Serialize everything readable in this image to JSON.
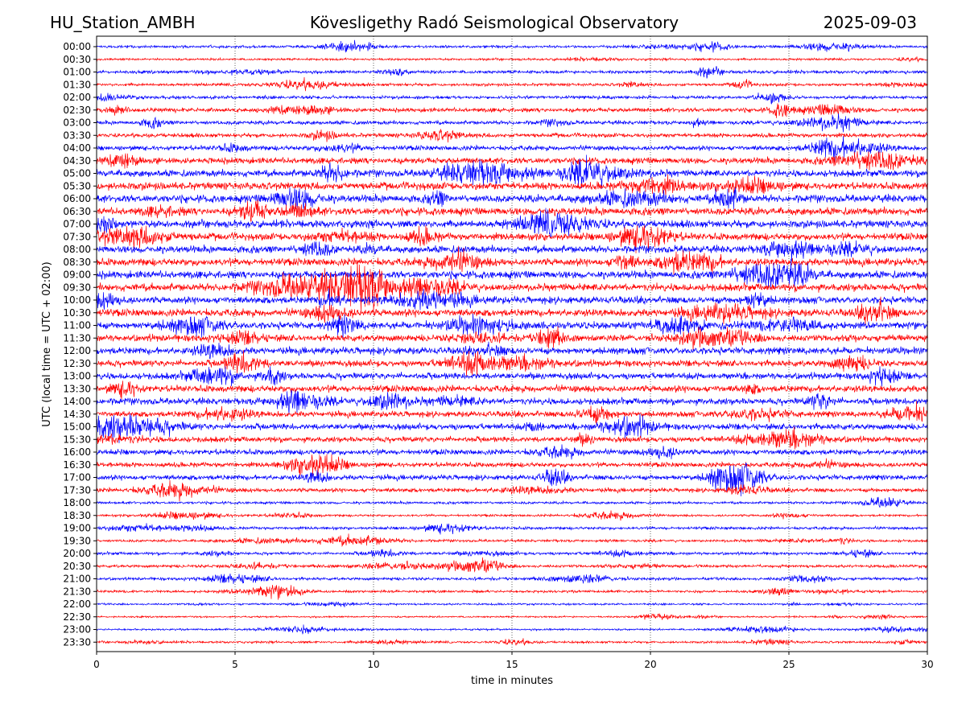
{
  "header": {
    "station": "HU_Station_AMBH",
    "observatory": "Kövesligethy Radó Seismological Observatory",
    "date": "2025-09-03"
  },
  "chart_data": {
    "type": "line",
    "title": "Kövesligethy Radó Seismological Observatory",
    "xlabel": "time in minutes",
    "ylabel": "UTC (local time = UTC + 02:00)",
    "xlim": [
      0,
      30
    ],
    "x_ticks": [
      0,
      5,
      10,
      15,
      20,
      25,
      30
    ],
    "x_grid": "dotted vertical lines at 5, 10, 15, 20, 25",
    "row_colors": [
      "#0000ff",
      "#ff0000"
    ],
    "rows": [
      {
        "label": "00:00",
        "level": 0.25
      },
      {
        "label": "00:30",
        "level": 0.2
      },
      {
        "label": "01:00",
        "level": 0.35
      },
      {
        "label": "01:30",
        "level": 0.3
      },
      {
        "label": "02:00",
        "level": 0.35
      },
      {
        "label": "02:30",
        "level": 0.5
      },
      {
        "label": "03:00",
        "level": 0.45
      },
      {
        "label": "03:30",
        "level": 0.5
      },
      {
        "label": "04:00",
        "level": 0.6
      },
      {
        "label": "04:30",
        "level": 0.8
      },
      {
        "label": "05:00",
        "level": 0.9
      },
      {
        "label": "05:30",
        "level": 1.0
      },
      {
        "label": "06:00",
        "level": 1.0
      },
      {
        "label": "06:30",
        "level": 1.0
      },
      {
        "label": "07:00",
        "level": 1.0
      },
      {
        "label": "07:30",
        "level": 0.95
      },
      {
        "label": "08:00",
        "level": 0.95
      },
      {
        "label": "08:30",
        "level": 1.0
      },
      {
        "label": "09:00",
        "level": 1.0
      },
      {
        "label": "09:30",
        "level": 1.0
      },
      {
        "label": "10:00",
        "level": 0.95
      },
      {
        "label": "10:30",
        "level": 1.0
      },
      {
        "label": "11:00",
        "level": 0.95
      },
      {
        "label": "11:30",
        "level": 0.9
      },
      {
        "label": "12:00",
        "level": 0.95
      },
      {
        "label": "12:30",
        "level": 0.85
      },
      {
        "label": "13:00",
        "level": 0.85
      },
      {
        "label": "13:30",
        "level": 0.9
      },
      {
        "label": "14:00",
        "level": 0.85
      },
      {
        "label": "14:30",
        "level": 0.75
      },
      {
        "label": "15:00",
        "level": 0.8
      },
      {
        "label": "15:30",
        "level": 0.7
      },
      {
        "label": "16:00",
        "level": 0.7
      },
      {
        "label": "16:30",
        "level": 0.6
      },
      {
        "label": "17:00",
        "level": 0.65
      },
      {
        "label": "17:30",
        "level": 0.5
      },
      {
        "label": "18:00",
        "level": 0.25
      },
      {
        "label": "18:30",
        "level": 0.2
      },
      {
        "label": "19:00",
        "level": 0.3
      },
      {
        "label": "19:30",
        "level": 0.25
      },
      {
        "label": "20:00",
        "level": 0.3
      },
      {
        "label": "20:30",
        "level": 0.3
      },
      {
        "label": "21:00",
        "level": 0.3
      },
      {
        "label": "21:30",
        "level": 0.25
      },
      {
        "label": "22:00",
        "level": 0.15
      },
      {
        "label": "22:30",
        "level": 0.12
      },
      {
        "label": "23:00",
        "level": 0.15
      },
      {
        "label": "23:30",
        "level": 0.2
      }
    ]
  }
}
